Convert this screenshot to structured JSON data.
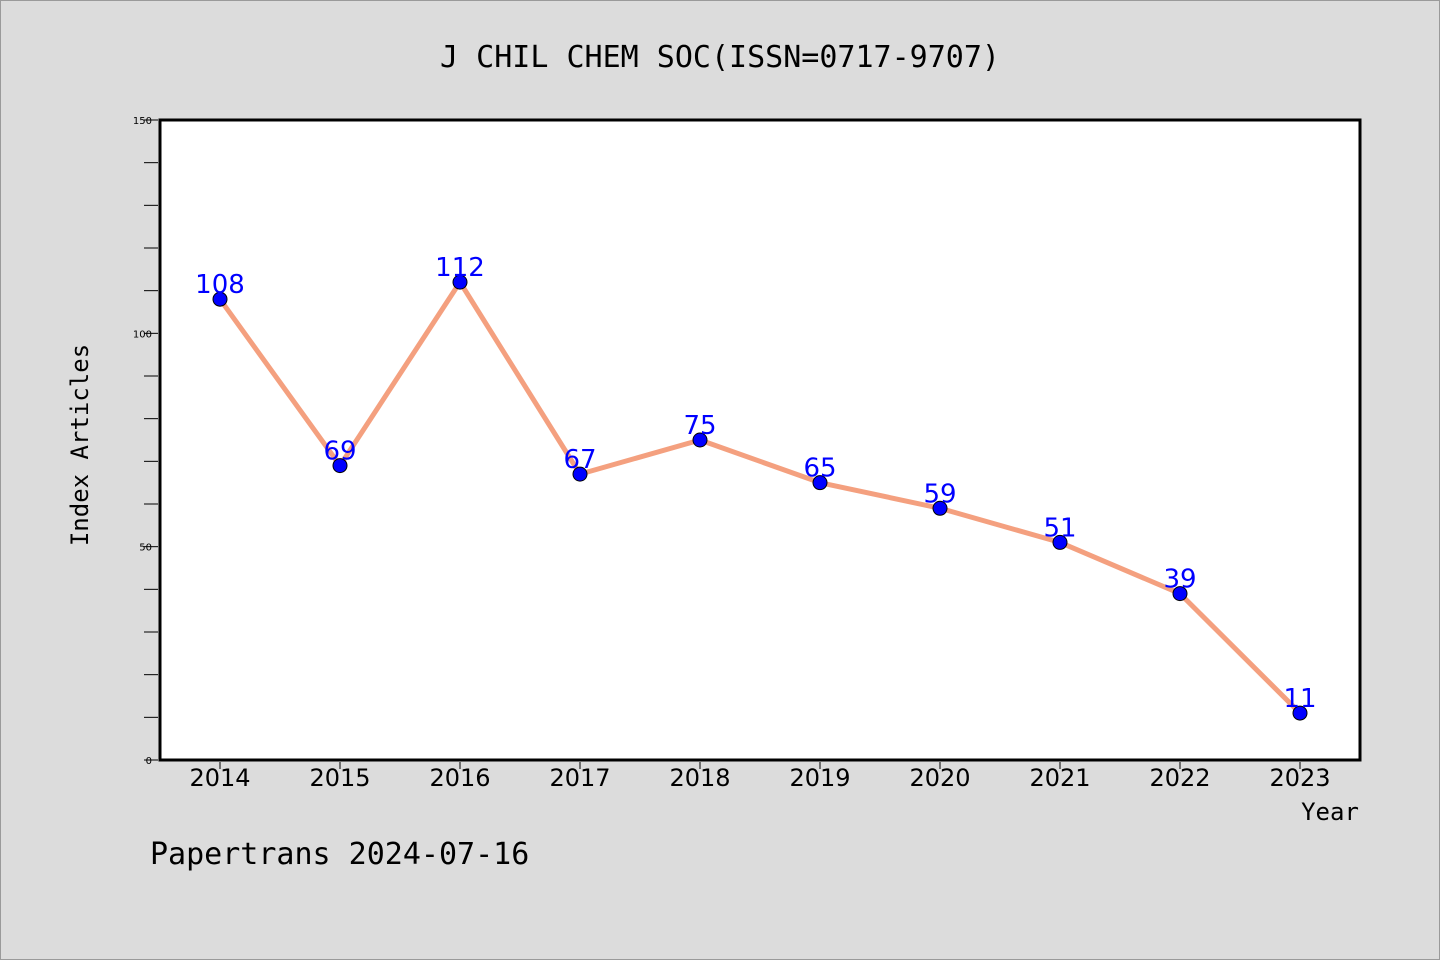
{
  "chart_data": {
    "type": "line",
    "title": "J CHIL CHEM SOC(ISSN=0717-9707)",
    "xlabel": "Year",
    "ylabel": "Index Articles",
    "categories": [
      "2014",
      "2015",
      "2016",
      "2017",
      "2018",
      "2019",
      "2020",
      "2021",
      "2022",
      "2023"
    ],
    "series": [
      {
        "values": [
          108,
          69,
          112,
          67,
          75,
          65,
          59,
          51,
          39,
          11
        ]
      }
    ],
    "ylim": [
      0,
      150
    ],
    "yticks": [
      0,
      50,
      100,
      150
    ],
    "grid": false,
    "colors": {
      "line": "#f4a07f",
      "marker": "#0000ff",
      "label": "#0000ff",
      "background": "#dcdcdc",
      "plot_bg": "#ffffff"
    }
  },
  "footer": "Papertrans 2024-07-16"
}
